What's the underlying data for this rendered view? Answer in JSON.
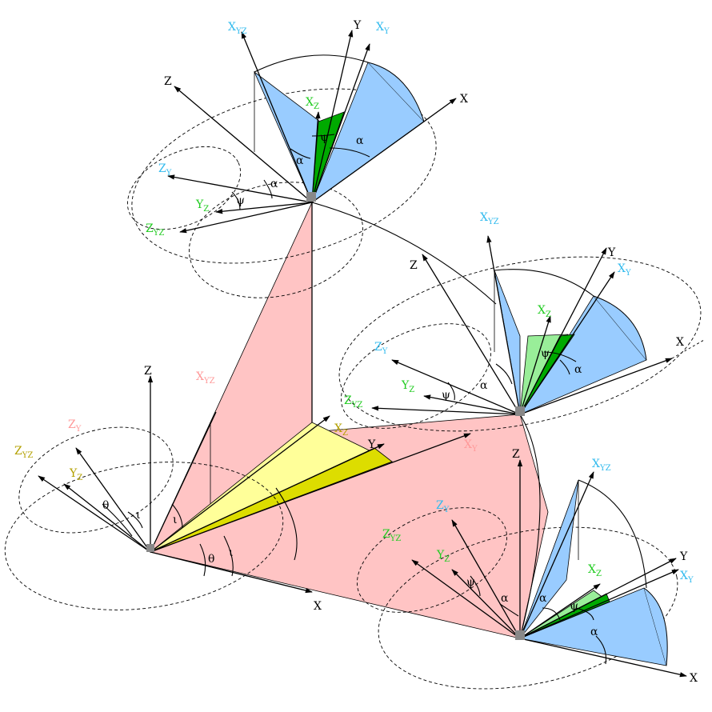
{
  "axes": {
    "X": "X",
    "Y": "Y",
    "Z": "Z"
  },
  "frame_labels": {
    "X_Y": [
      "X",
      "Y"
    ],
    "X_YZ": [
      "X",
      "YZ"
    ],
    "X_Z": [
      "X",
      "Z"
    ],
    "Y_Z": [
      "Y",
      "Z"
    ],
    "Z_Y": [
      "Z",
      "Y"
    ],
    "Z_YZ": [
      "Z",
      "YZ"
    ]
  },
  "angles": {
    "alpha": "α",
    "psi": "ψ",
    "theta": "θ",
    "iota": "ι"
  },
  "colors": {
    "pink": "#ffc4c4",
    "yellow_light": "#ffff99",
    "yellow_dark": "#dddd00",
    "blue": "#99ccff",
    "green_dark": "#00aa00",
    "green_light": "#99ee99",
    "label_pink": "#ff9999",
    "label_olive": "#b3a000",
    "label_green": "#22cc22",
    "label_cyan": "#33bbee"
  }
}
